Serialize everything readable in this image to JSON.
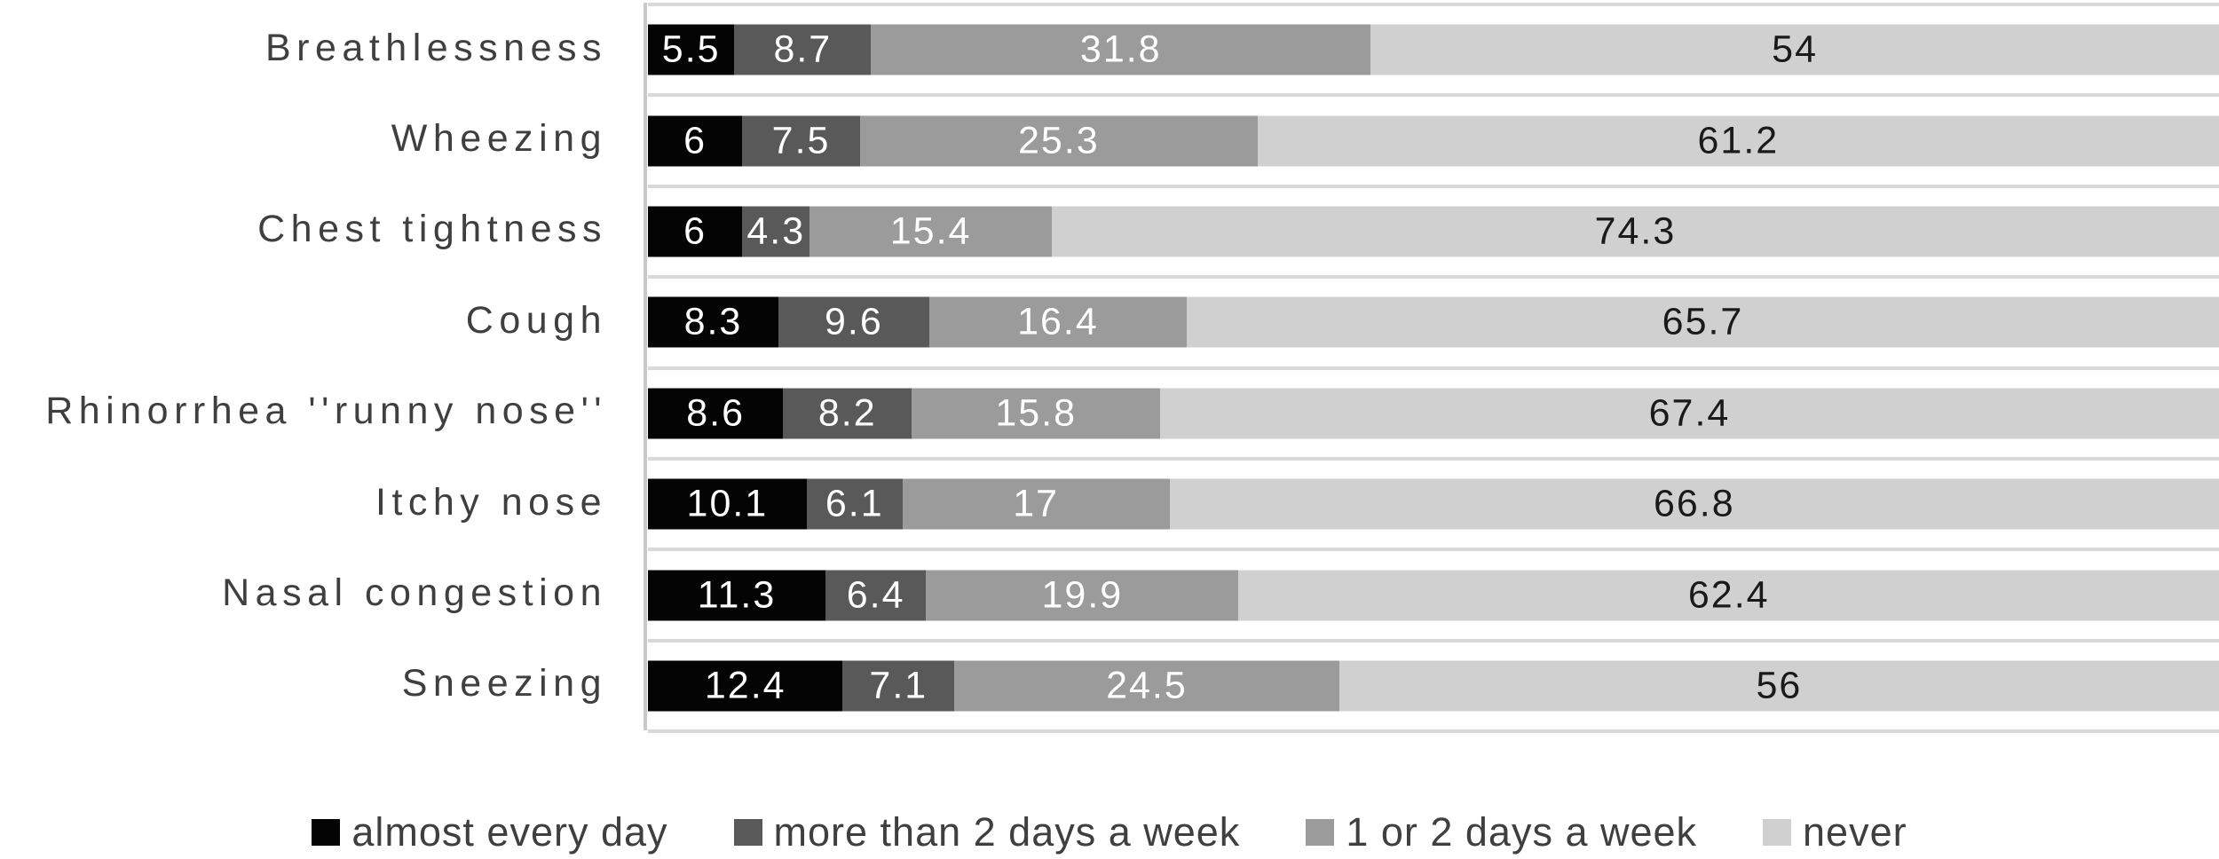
{
  "chart_data": {
    "type": "bar",
    "orientation": "horizontal-stacked",
    "unit": "percent",
    "xlim": [
      0,
      100
    ],
    "grid": true,
    "legend_position": "bottom",
    "categories": [
      "Breathlessness",
      "Wheezing",
      "Chest tightness",
      "Cough",
      "Rhinorrhea ''runny nose''",
      "Itchy nose",
      "Nasal congestion",
      "Sneezing"
    ],
    "series": [
      {
        "name": "almost every day",
        "color": "#040404",
        "label_text_color": "#ffffff",
        "values": [
          5.5,
          6,
          6,
          8.3,
          8.6,
          10.1,
          11.3,
          12.4
        ]
      },
      {
        "name": "more than 2 days a week",
        "color": "#595959",
        "label_text_color": "#ffffff",
        "values": [
          8.7,
          7.5,
          4.3,
          9.6,
          8.2,
          6.1,
          6.4,
          7.1
        ]
      },
      {
        "name": "1 or 2 days a week",
        "color": "#9b9b9b",
        "label_text_color": "#ffffff",
        "values": [
          31.8,
          25.3,
          15.4,
          16.4,
          15.8,
          17,
          19.9,
          24.5
        ]
      },
      {
        "name": "never",
        "color": "#d0d0d0",
        "label_text_color": "#1a1a1a",
        "values": [
          54,
          61.2,
          74.3,
          65.7,
          67.4,
          66.8,
          62.4,
          56
        ]
      }
    ]
  },
  "style": {
    "background": "#ffffff",
    "gridline_color": "#d9d9d9",
    "axis_line_color": "#c9c9c9",
    "category_label_color": "#3f3f3f",
    "legend_text_color": "#3f3f3f"
  }
}
